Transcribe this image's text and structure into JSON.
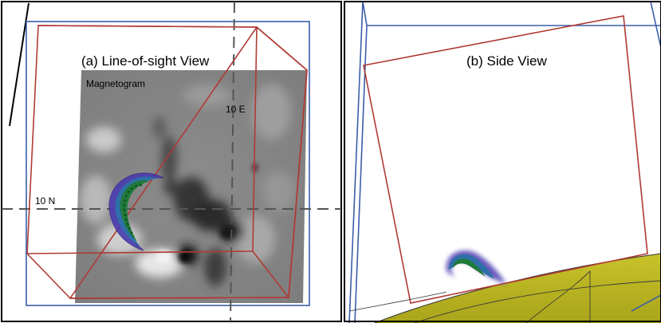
{
  "panel_a": {
    "title": "(a) Line-of-sight View",
    "magnetogram_label": "Magnetogram",
    "vertical_tick_label": "10 E",
    "horizontal_tick_label": "10 N"
  },
  "panel_b": {
    "title": "(b) Side View"
  },
  "colors": {
    "box_blue": "#3a5ea8",
    "box_red": "#b03a33",
    "sun_surface": "#c2bd1e",
    "flux_rope_outer": "#4a3bb0",
    "flux_rope_inner": "#1f7a3a"
  }
}
